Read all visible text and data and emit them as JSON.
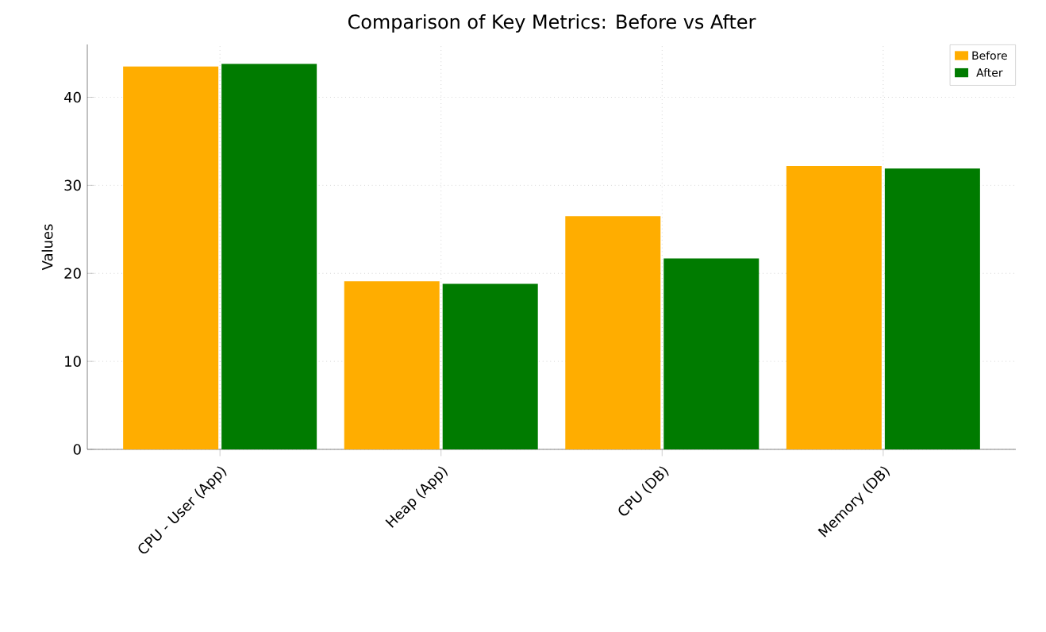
{
  "chart_data": {
    "type": "bar",
    "title": "Comparison of Key Metrics: Before vs After",
    "ylabel": "Values",
    "categories": [
      "CPU - User (App)",
      "Heap (App)",
      "CPU (DB)",
      "Memory (DB)"
    ],
    "series": [
      {
        "name": "Before",
        "color": "#ffad00",
        "values": [
          43.5,
          19.1,
          26.5,
          32.2
        ]
      },
      {
        "name": "After",
        "color": "#007b00",
        "values": [
          43.8,
          18.8,
          21.7,
          31.9
        ]
      }
    ],
    "ylim": [
      0,
      46
    ],
    "yticks": [
      0,
      10,
      20,
      30,
      40
    ],
    "grid": true,
    "legend": "top right"
  }
}
